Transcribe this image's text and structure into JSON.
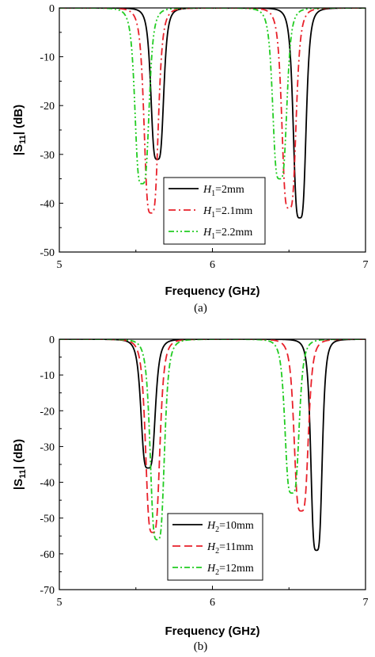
{
  "chart_data": [
    {
      "type": "line",
      "caption": "(a)",
      "xlabel": "Frequency (GHz)",
      "ylabel": "|S11| (dB)",
      "xlim": [
        5,
        7
      ],
      "ylim": [
        -50,
        0
      ],
      "xticks": [
        5,
        6,
        7
      ],
      "yticks": [
        0,
        -10,
        -20,
        -30,
        -40,
        -50
      ],
      "grid": false,
      "legend_position": "bottom-right",
      "series": [
        {
          "name": "H1=2mm",
          "legend_prefix": "H",
          "legend_sub": "1",
          "legend_suffix": "=2mm",
          "color": "#000000",
          "dash": "",
          "resonances": [
            {
              "f0": 5.64,
              "depth": -31,
              "width": 0.045
            },
            {
              "f0": 6.57,
              "depth": -43,
              "width": 0.045
            }
          ]
        },
        {
          "name": "H1=2.1mm",
          "legend_prefix": "H",
          "legend_sub": "1",
          "legend_suffix": "=2.1mm",
          "color": "#e8202a",
          "dash": "9,4,2,4",
          "resonances": [
            {
              "f0": 5.6,
              "depth": -42,
              "width": 0.05
            },
            {
              "f0": 6.5,
              "depth": -41,
              "width": 0.05
            }
          ]
        },
        {
          "name": "H1=2.2mm",
          "legend_prefix": "H",
          "legend_sub": "1",
          "legend_suffix": "=2.2mm",
          "color": "#22cc22",
          "dash": "7,3,2,3,2,3",
          "resonances": [
            {
              "f0": 5.54,
              "depth": -36,
              "width": 0.05
            },
            {
              "f0": 6.44,
              "depth": -35,
              "width": 0.05
            }
          ]
        }
      ]
    },
    {
      "type": "line",
      "caption": "(b)",
      "xlabel": "Frequency (GHz)",
      "ylabel": "|S11| (dB)",
      "xlim": [
        5,
        7
      ],
      "ylim": [
        -70,
        0
      ],
      "xticks": [
        5,
        6,
        7
      ],
      "yticks": [
        0,
        -10,
        -20,
        -30,
        -40,
        -50,
        -60,
        -70
      ],
      "grid": false,
      "legend_position": "bottom-right",
      "series": [
        {
          "name": "H2=10mm",
          "legend_prefix": "H",
          "legend_sub": "2",
          "legend_suffix": "=10mm",
          "color": "#000000",
          "dash": "",
          "resonances": [
            {
              "f0": 5.58,
              "depth": -36,
              "width": 0.05
            },
            {
              "f0": 6.68,
              "depth": -59,
              "width": 0.04
            }
          ]
        },
        {
          "name": "H2=11mm",
          "legend_prefix": "H",
          "legend_sub": "2",
          "legend_suffix": "=11mm",
          "color": "#e8202a",
          "dash": "10,5",
          "resonances": [
            {
              "f0": 5.61,
              "depth": -54,
              "width": 0.05
            },
            {
              "f0": 6.58,
              "depth": -48,
              "width": 0.05
            }
          ]
        },
        {
          "name": "H2=12mm",
          "legend_prefix": "H",
          "legend_sub": "2",
          "legend_suffix": "=12mm",
          "color": "#22cc22",
          "dash": "7,3,2,3",
          "resonances": [
            {
              "f0": 5.64,
              "depth": -56,
              "width": 0.05
            },
            {
              "f0": 6.52,
              "depth": -43,
              "width": 0.05
            }
          ]
        }
      ]
    }
  ]
}
